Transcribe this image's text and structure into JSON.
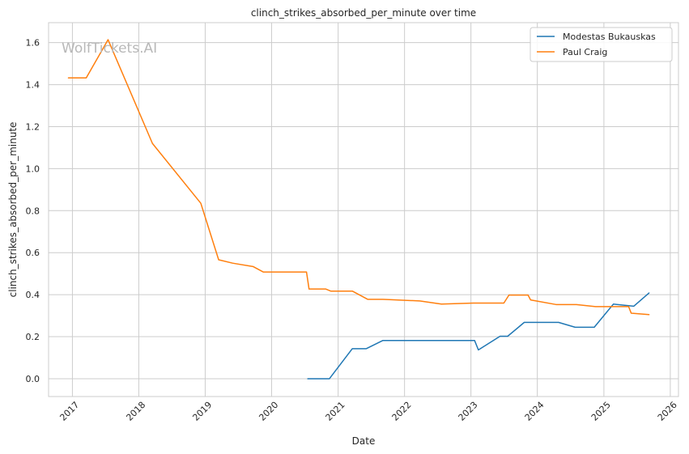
{
  "chart_data": {
    "type": "line",
    "title": "clinch_strikes_absorbed_per_minute over time",
    "xlabel": "Date",
    "ylabel": "clinch_strikes_absorbed_per_minute",
    "xlim": [
      "2016-08-23",
      "2026-02-15"
    ],
    "ylim": [
      -0.085,
      1.695
    ],
    "x_ticks": [
      "2017",
      "2018",
      "2019",
      "2020",
      "2021",
      "2022",
      "2023",
      "2024",
      "2025",
      "2026"
    ],
    "y_ticks": [
      "0.0",
      "0.2",
      "0.4",
      "0.6",
      "0.8",
      "1.0",
      "1.2",
      "1.4",
      "1.6"
    ],
    "grid": true,
    "legend_position": "top-right",
    "watermark": "WolfTickets.AI",
    "series": [
      {
        "name": "Modestas Bukauskas",
        "color": "#1f77b4",
        "points": [
          [
            "2020-07-18",
            0.0
          ],
          [
            "2020-11-14",
            0.0
          ],
          [
            "2021-03-20",
            0.143
          ],
          [
            "2021-06-05",
            0.143
          ],
          [
            "2021-09-04",
            0.182
          ],
          [
            "2023-01-21",
            0.182
          ],
          [
            "2023-02-11",
            0.137
          ],
          [
            "2023-06-10",
            0.202
          ],
          [
            "2023-07-22",
            0.202
          ],
          [
            "2023-10-21",
            0.268
          ],
          [
            "2024-04-27",
            0.268
          ],
          [
            "2024-07-27",
            0.245
          ],
          [
            "2024-11-09",
            0.245
          ],
          [
            "2025-02-22",
            0.355
          ],
          [
            "2025-06-14",
            0.345
          ],
          [
            "2025-09-06",
            0.408
          ]
        ]
      },
      {
        "name": "Paul Craig",
        "color": "#ff7f0e",
        "points": [
          [
            "2016-12-10",
            1.432
          ],
          [
            "2017-03-18",
            1.432
          ],
          [
            "2017-07-16",
            1.614
          ],
          [
            "2018-03-17",
            1.12
          ],
          [
            "2018-12-08",
            0.835
          ],
          [
            "2019-03-16",
            0.566
          ],
          [
            "2019-06-01",
            0.55
          ],
          [
            "2019-09-21",
            0.534
          ],
          [
            "2019-11-16",
            0.508
          ],
          [
            "2020-07-11",
            0.508
          ],
          [
            "2020-07-25",
            0.427
          ],
          [
            "2020-10-24",
            0.427
          ],
          [
            "2020-11-21",
            0.417
          ],
          [
            "2021-03-20",
            0.417
          ],
          [
            "2021-06-12",
            0.378
          ],
          [
            "2021-09-04",
            0.378
          ],
          [
            "2022-03-26",
            0.37
          ],
          [
            "2022-07-23",
            0.355
          ],
          [
            "2023-01-14",
            0.36
          ],
          [
            "2023-07-01",
            0.36
          ],
          [
            "2023-07-29",
            0.398
          ],
          [
            "2023-11-11",
            0.398
          ],
          [
            "2023-11-25",
            0.375
          ],
          [
            "2024-04-13",
            0.353
          ],
          [
            "2024-08-03",
            0.353
          ],
          [
            "2024-11-16",
            0.343
          ],
          [
            "2025-04-19",
            0.343
          ],
          [
            "2025-05-17",
            0.343
          ],
          [
            "2025-05-31",
            0.312
          ],
          [
            "2025-09-06",
            0.305
          ]
        ]
      }
    ]
  }
}
